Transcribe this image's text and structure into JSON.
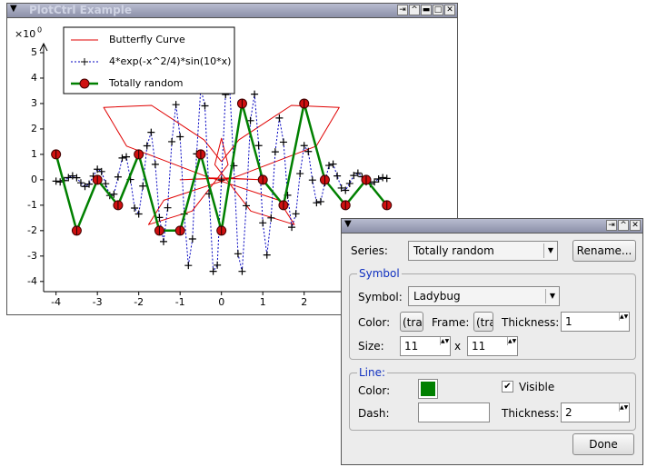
{
  "window": {
    "title": "PlotCtrl Example"
  },
  "chart_data": {
    "type": "line",
    "y_scale_label": "×10",
    "y_scale_exponent": "0",
    "xlim": [
      -4.3,
      5.5
    ],
    "ylim": [
      -4.4,
      5.5
    ],
    "xticks": [
      -4,
      -3,
      -2,
      -1,
      0,
      1,
      2,
      3,
      4,
      5
    ],
    "yticks": [
      -4,
      -3,
      -2,
      -1,
      0,
      1,
      2,
      3,
      4,
      5
    ],
    "series": [
      {
        "name": "Butterfly Curve",
        "color": "#e00000",
        "marker": "none",
        "x": [
          0,
          0.421,
          1.689,
          2.848,
          2.294,
          0.286,
          -1,
          -0.22,
          1.392,
          1.763,
          0.71,
          -0.16,
          0,
          0.16,
          -0.71,
          -1.763,
          -1.392,
          0.22,
          1,
          -0.286,
          -2.294,
          -2.848,
          -1.689,
          -0.421,
          0
        ],
        "values": [
          0.718,
          1.572,
          2.925,
          2.848,
          1.324,
          0.077,
          0,
          0.059,
          -0.804,
          -1.763,
          -1.23,
          0.598,
          1.632,
          0.598,
          -1.23,
          -1.763,
          -0.804,
          0.059,
          0,
          0.077,
          1.324,
          2.848,
          2.925,
          1.572,
          0.718
        ]
      },
      {
        "name": "4*exp(-x^2/4)*sin(10*x)",
        "color": "#0000c0",
        "marker": "cross",
        "x": [
          -4,
          -3.9,
          -3.8,
          -3.7,
          -3.6,
          -3.5,
          -3.4,
          -3.3,
          -3.2,
          -3.1,
          -3,
          -2.9,
          -2.8,
          -2.7,
          -2.6,
          -2.5,
          -2.4,
          -2.3,
          -2.2,
          -2.1,
          -2,
          -1.9,
          -1.8,
          -1.7,
          -1.6,
          -1.5,
          -1.4,
          -1.3,
          -1.2,
          -1.1,
          -1,
          -0.9,
          -0.8,
          -0.7,
          -0.6,
          -0.5,
          -0.4,
          -0.3,
          -0.2,
          -0.1,
          0,
          0.1,
          0.2,
          0.3,
          0.4,
          0.5,
          0.6,
          0.7,
          0.8,
          0.9,
          1,
          1.1,
          1.2,
          1.3,
          1.4,
          1.5,
          1.6,
          1.7,
          1.8,
          1.9,
          2,
          2.1,
          2.2,
          2.3,
          2.4,
          2.5,
          2.6,
          2.7,
          2.8,
          2.9,
          3,
          3.1,
          3.2,
          3.3,
          3.4,
          3.5,
          3.6,
          3.7,
          3.8,
          3.9,
          4
        ],
        "values": [
          -0.054,
          -0.085,
          -0.032,
          0.085,
          0.155,
          0.08,
          -0.118,
          -0.264,
          -0.17,
          0.145,
          0.415,
          0.324,
          -0.153,
          -0.619,
          -0.565,
          0.111,
          0.859,
          0.904,
          0.011,
          -1.112,
          -1.344,
          -0.244,
          1.337,
          1.868,
          0.607,
          -1.482,
          -2.43,
          -1.1,
          1.499,
          2.956,
          1.695,
          -1.346,
          -3.37,
          -2.326,
          1.02,
          3.602,
          2.91,
          -0.552,
          -3.6,
          -3.356,
          0,
          3.356,
          3.6,
          0.552,
          -2.91,
          -3.602,
          -1.02,
          2.326,
          3.37,
          1.346,
          -1.695,
          -2.956,
          -1.499,
          1.1,
          2.43,
          1.482,
          -0.607,
          -1.868,
          -1.337,
          0.244,
          1.344,
          1.112,
          -0.011,
          -0.904,
          -0.859,
          -0.111,
          0.565,
          0.619,
          0.153,
          -0.324,
          -0.415,
          -0.145,
          0.17,
          0.264,
          0.118,
          -0.08,
          -0.155,
          -0.085,
          0.032,
          0.085,
          0.054
        ]
      },
      {
        "name": "Totally random",
        "color": "#008000",
        "marker": "ladybug",
        "x": [
          -4,
          -3.5,
          -3,
          -2.5,
          -2,
          -1.5,
          -1,
          -0.5,
          0,
          0.5,
          1,
          1.5,
          2,
          2.5,
          3,
          3.5,
          4
        ],
        "values": [
          1,
          -2,
          0,
          -1,
          1,
          -2,
          -2,
          1,
          -2,
          3,
          0,
          -1,
          3,
          0,
          -1,
          0,
          -1
        ]
      }
    ]
  },
  "dialog": {
    "series_label": "Series:",
    "series_value": "Totally random",
    "rename": "Rename...",
    "symbol_group": "Symbol",
    "symbol_label": "Symbol:",
    "symbol_value": "Ladybug",
    "color_label": "Color:",
    "color_value": "(tra",
    "frame_label": "Frame:",
    "frame_value": "(tra",
    "thickness_label": "Thickness:",
    "thickness_value": "1",
    "size_label": "Size:",
    "size_w": "11",
    "size_x": "x",
    "size_h": "11",
    "line_group": "Line:",
    "line_color_label": "Color:",
    "visible_label": "Visible",
    "dash_label": "Dash:",
    "line_thickness_label": "Thickness:",
    "line_thickness_value": "2",
    "done": "Done"
  }
}
